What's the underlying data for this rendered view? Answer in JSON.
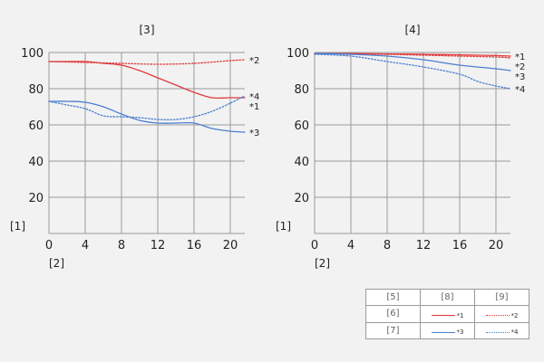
{
  "colors": {
    "sagittal": "#e0393b",
    "meridional": "#4a7fcf"
  },
  "chart_data": [
    {
      "type": "line",
      "title": "[3]",
      "xlabel": "[2]",
      "ylabel": "[1]",
      "xlim": [
        0,
        21.6
      ],
      "ylim": [
        0,
        100
      ],
      "x_ticks": [
        0,
        4,
        8,
        12,
        16,
        20
      ],
      "y_ticks": [
        20,
        40,
        60,
        80,
        100
      ],
      "grid": true,
      "series": [
        {
          "name": "*1",
          "color": "#e0393b",
          "style": "solid",
          "x": [
            0,
            2,
            4,
            6,
            8,
            10,
            12,
            14,
            16,
            18,
            20,
            21.6
          ],
          "y": [
            95,
            95,
            95,
            94,
            93,
            90,
            86,
            82,
            78,
            75,
            75,
            75
          ]
        },
        {
          "name": "*2",
          "color": "#e0393b",
          "style": "dotted",
          "x": [
            0,
            4,
            8,
            12,
            16,
            20,
            21.6
          ],
          "y": [
            95,
            94.5,
            94,
            93.5,
            94,
            95.5,
            96
          ]
        },
        {
          "name": "*3",
          "color": "#4a7fcf",
          "style": "solid",
          "x": [
            0,
            2,
            4,
            6,
            8,
            10,
            12,
            14,
            16,
            18,
            20,
            21.6
          ],
          "y": [
            73,
            73,
            72.5,
            70,
            66,
            62.5,
            61,
            61,
            61,
            58,
            56.5,
            56
          ]
        },
        {
          "name": "*4",
          "color": "#4a7fcf",
          "style": "dotted",
          "x": [
            0,
            2,
            4,
            6,
            8,
            10,
            12,
            14,
            16,
            18,
            20,
            21.6
          ],
          "y": [
            73,
            71,
            69,
            65,
            64.5,
            64,
            63,
            63,
            64.5,
            67.5,
            72,
            76
          ]
        }
      ],
      "labels": [
        {
          "text": "*2",
          "series": "*2"
        },
        {
          "text": "*4",
          "series": "*4"
        },
        {
          "text": "*1",
          "series": "*1"
        },
        {
          "text": "*3",
          "series": "*3"
        }
      ]
    },
    {
      "type": "line",
      "title": "[4]",
      "xlabel": "[2]",
      "ylabel": "[1]",
      "xlim": [
        0,
        21.6
      ],
      "ylim": [
        0,
        100
      ],
      "x_ticks": [
        0,
        4,
        8,
        12,
        16,
        20
      ],
      "y_ticks": [
        20,
        40,
        60,
        80,
        100
      ],
      "grid": true,
      "series": [
        {
          "name": "*1",
          "color": "#e0393b",
          "style": "solid",
          "x": [
            0,
            4,
            8,
            12,
            16,
            20,
            21.6
          ],
          "y": [
            99.5,
            99.4,
            99.2,
            99,
            98.7,
            98.3,
            98
          ]
        },
        {
          "name": "*2",
          "color": "#e0393b",
          "style": "dotted",
          "x": [
            0,
            4,
            8,
            12,
            16,
            20,
            21.6
          ],
          "y": [
            99.5,
            99.2,
            99,
            98.5,
            98,
            97.5,
            97
          ]
        },
        {
          "name": "*3",
          "color": "#4a7fcf",
          "style": "solid",
          "x": [
            0,
            4,
            8,
            12,
            16,
            20,
            21.6
          ],
          "y": [
            99.5,
            99,
            98,
            96,
            93,
            91,
            90
          ]
        },
        {
          "name": "*4",
          "color": "#4a7fcf",
          "style": "dotted",
          "x": [
            0,
            4,
            8,
            12,
            16,
            18,
            20,
            21.6
          ],
          "y": [
            99,
            98,
            95,
            92,
            88,
            84,
            81.5,
            80
          ]
        }
      ],
      "labels": [
        {
          "text": "*1",
          "series": "*1"
        },
        {
          "text": "*2",
          "series": "*2"
        },
        {
          "text": "*3",
          "series": "*3"
        },
        {
          "text": "*4",
          "series": "*4"
        }
      ]
    }
  ],
  "legend": {
    "header": {
      "corner": "[5]",
      "col1": "[8]",
      "col2": "[9]"
    },
    "rows": [
      {
        "label": "[6]",
        "col1_series": "*1",
        "col2_series": "*2"
      },
      {
        "label": "[7]",
        "col1_series": "*3",
        "col2_series": "*4"
      }
    ]
  }
}
